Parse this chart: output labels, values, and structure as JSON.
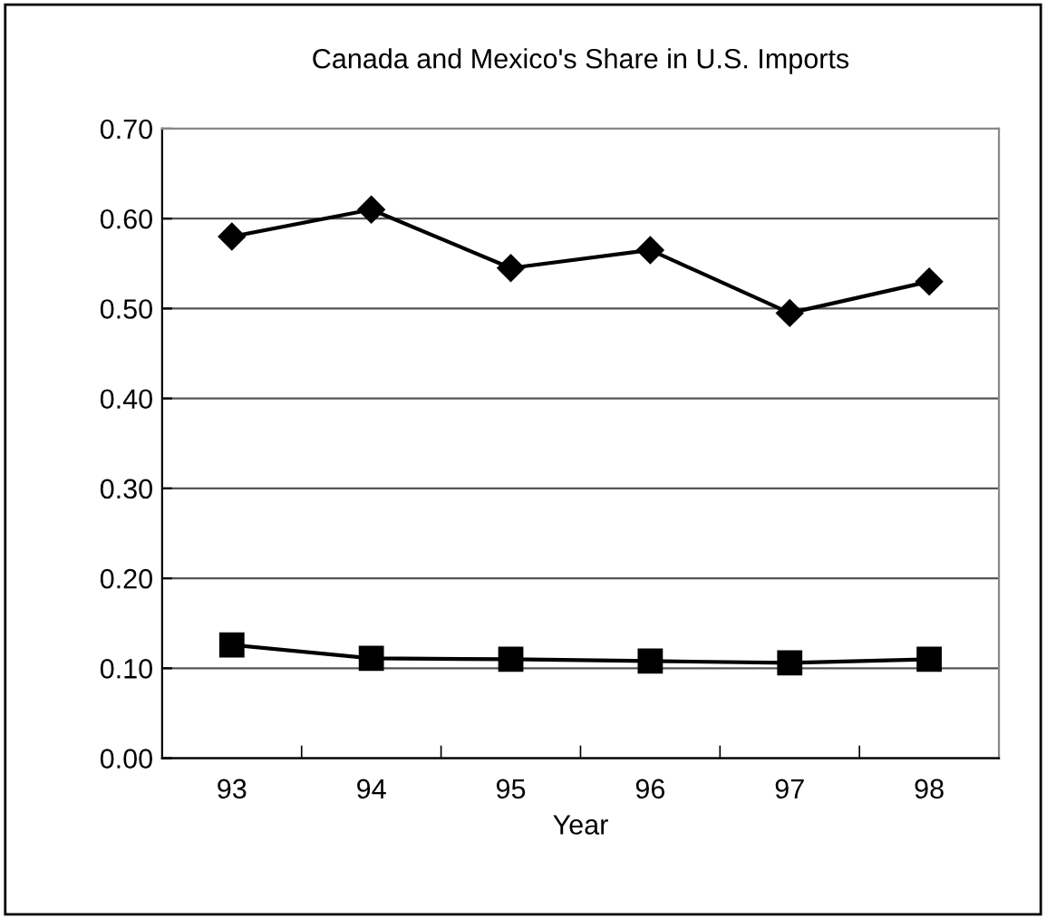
{
  "chart_data": {
    "type": "line",
    "title": "Canada and Mexico's Share in U.S. Imports",
    "xlabel": "Year",
    "categories": [
      "93",
      "94",
      "95",
      "96",
      "97",
      "98"
    ],
    "series": [
      {
        "color": "#000000",
        "marker": "diamond",
        "values": [
          0.58,
          0.61,
          0.545,
          0.565,
          0.495,
          0.53
        ]
      },
      {
        "color": "#000000",
        "marker": "square",
        "values": [
          0.126,
          0.111,
          0.11,
          0.108,
          0.106,
          0.11
        ]
      }
    ],
    "ylim": [
      0,
      0.7
    ],
    "yticks": [
      {
        "value": 0,
        "label": "0.00"
      },
      {
        "value": 0.1,
        "label": "0.10"
      },
      {
        "value": 0.2,
        "label": "0.20"
      },
      {
        "value": 0.3,
        "label": "0.30"
      },
      {
        "value": 0.4,
        "label": "0.40"
      },
      {
        "value": 0.5,
        "label": "0.50"
      },
      {
        "value": 0.6,
        "label": "0.60"
      },
      {
        "value": 0.7,
        "label": "0.70"
      }
    ],
    "grid": "y",
    "legend": false,
    "line_style": "solid"
  }
}
